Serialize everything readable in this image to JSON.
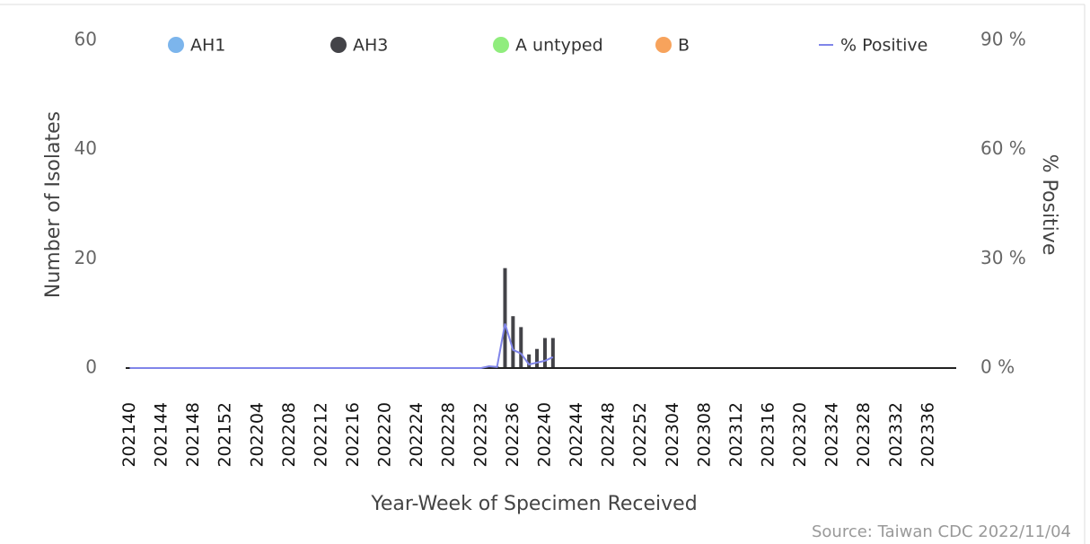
{
  "chart_data": {
    "type": "bar",
    "x_label": "Year-Week of Specimen Received",
    "y_label": "Number of Isolates",
    "y2_label": "% Positive",
    "source": "Source: Taiwan CDC 2022/11/04",
    "stacked": true,
    "categories": [
      "202140",
      null,
      null,
      null,
      "202144",
      null,
      null,
      null,
      "202148",
      null,
      null,
      null,
      "202152",
      null,
      null,
      null,
      "202204",
      null,
      null,
      null,
      "202208",
      null,
      null,
      null,
      "202212",
      null,
      null,
      null,
      "202216",
      null,
      null,
      null,
      "202220",
      null,
      null,
      null,
      "202224",
      null,
      null,
      null,
      "202228",
      null,
      null,
      null,
      "202232",
      null,
      null,
      null,
      "202236",
      null,
      null,
      null,
      "202240",
      null,
      null,
      null,
      "202244",
      null,
      null,
      null,
      "202248",
      null,
      null,
      null,
      "202252",
      null,
      null,
      null,
      "202304",
      null,
      null,
      null,
      "202308",
      null,
      null,
      null,
      "202312",
      null,
      null,
      null,
      "202316",
      null,
      null,
      null,
      "202320",
      null,
      null,
      null,
      "202324",
      null,
      null,
      null,
      "202328",
      null,
      null,
      null,
      "202332",
      null,
      null,
      null,
      "202336",
      null,
      null,
      null
    ],
    "series": [
      {
        "name": "AH1",
        "color": "#7cb5ec",
        "values": [
          0,
          0,
          0,
          0,
          0,
          0,
          0,
          0,
          0,
          0,
          0,
          0,
          0,
          0,
          0,
          0,
          0,
          0,
          0,
          0,
          0,
          0,
          0,
          0,
          0,
          0,
          0,
          0,
          0,
          0,
          0,
          0,
          0,
          0,
          0,
          0,
          0,
          0,
          0,
          0,
          0,
          0,
          0,
          0,
          0,
          0,
          0,
          0,
          0,
          0,
          0,
          0,
          0,
          0,
          0,
          0,
          0,
          0,
          0,
          0,
          0,
          0,
          0,
          0,
          0,
          0,
          0,
          0,
          0,
          0,
          0,
          0,
          0,
          0,
          0,
          0,
          0,
          0,
          0,
          0,
          0,
          0,
          0,
          0,
          0,
          0,
          0,
          0,
          0,
          0,
          0,
          0,
          0,
          0,
          0,
          0,
          0,
          0,
          0,
          0,
          0,
          0,
          0,
          0
        ]
      },
      {
        "name": "AH3",
        "color": "#434348",
        "values": [
          0,
          0,
          0,
          0,
          0,
          0,
          0,
          0,
          0,
          0,
          0,
          0,
          0,
          0,
          0,
          0,
          0,
          0,
          0,
          0,
          0,
          0,
          0,
          0,
          0,
          0,
          0,
          0,
          0,
          0,
          0,
          0,
          0,
          0,
          0,
          0,
          0,
          0,
          0,
          0,
          0,
          0,
          0,
          0,
          0,
          0.3,
          0.3,
          18.3,
          9.5,
          7.5,
          2.5,
          3.5,
          5.5,
          5.5,
          0,
          0,
          0,
          0,
          0,
          0,
          0,
          0,
          0,
          0,
          0,
          0,
          0,
          0,
          0,
          0,
          0,
          0,
          0,
          0,
          0,
          0,
          0,
          0,
          0,
          0,
          0,
          0,
          0,
          0,
          0,
          0,
          0,
          0,
          0,
          0,
          0,
          0,
          0,
          0,
          0,
          0,
          0,
          0,
          0,
          0,
          0,
          0,
          0,
          0
        ]
      },
      {
        "name": "A untyped",
        "color": "#90ed7d",
        "values": [
          0,
          0,
          0,
          0,
          0,
          0,
          0,
          0,
          0,
          0,
          0,
          0,
          0,
          0,
          0,
          0,
          0,
          0,
          0,
          0,
          0,
          0,
          0,
          0,
          0,
          0,
          0,
          0,
          0,
          0,
          0,
          0,
          0,
          0,
          0,
          0,
          0,
          0,
          0,
          0,
          0,
          0,
          0,
          0,
          0,
          0,
          0,
          0,
          0,
          0,
          0,
          0,
          0,
          0,
          0,
          0,
          0,
          0,
          0,
          0,
          0,
          0,
          0,
          0,
          0,
          0,
          0,
          0,
          0,
          0,
          0,
          0,
          0,
          0,
          0,
          0,
          0,
          0,
          0,
          0,
          0,
          0,
          0,
          0,
          0,
          0,
          0,
          0,
          0,
          0,
          0,
          0,
          0,
          0,
          0,
          0,
          0,
          0,
          0,
          0,
          0,
          0,
          0,
          0
        ]
      },
      {
        "name": "B",
        "color": "#f7a35c",
        "values": [
          0,
          0,
          0,
          0,
          0,
          0,
          0,
          0,
          0,
          0,
          0,
          0,
          0,
          0,
          0,
          0,
          0,
          0,
          0,
          0,
          0,
          0,
          0,
          0,
          0,
          0,
          0,
          0,
          0,
          0,
          0,
          0,
          0,
          0,
          0,
          0,
          0,
          0,
          0,
          0,
          0,
          0,
          0,
          0,
          0,
          0,
          0,
          0,
          0,
          0,
          0,
          0,
          0,
          0,
          0,
          0,
          0,
          0,
          0,
          0,
          0,
          0,
          0,
          0,
          0,
          0,
          0,
          0,
          0,
          0,
          0,
          0,
          0,
          0,
          0,
          0,
          0,
          0,
          0,
          0,
          0,
          0,
          0,
          0,
          0,
          0,
          0,
          0,
          0,
          0,
          0,
          0,
          0,
          0,
          0,
          0,
          0,
          0,
          0,
          0,
          0,
          0,
          0,
          0
        ]
      },
      {
        "name": "% Positive",
        "color": "#8085e9",
        "type": "line",
        "axis": "y2",
        "values": [
          0,
          0,
          0,
          0,
          0,
          0,
          0,
          0,
          0,
          0,
          0,
          0,
          0,
          0,
          0,
          0,
          0,
          0,
          0,
          0,
          0,
          0,
          0,
          0,
          0,
          0,
          0,
          0,
          0,
          0,
          0,
          0,
          0,
          0,
          0,
          0,
          0,
          0,
          0,
          0,
          0,
          0,
          0,
          0,
          0,
          0.5,
          0.3,
          12.2,
          5,
          4,
          1,
          1.5,
          2,
          3,
          null,
          null,
          null,
          null,
          null,
          null,
          null,
          null,
          null,
          null,
          null,
          null,
          null,
          null,
          null,
          null,
          null,
          null,
          null,
          null,
          null,
          null,
          null,
          null,
          null,
          null,
          null,
          null,
          null,
          null,
          null,
          null,
          null,
          null,
          null,
          null,
          null,
          null,
          null,
          null,
          null,
          null,
          null,
          null,
          null,
          null,
          null,
          null,
          null,
          null
        ]
      }
    ],
    "ylim": [
      0,
      60
    ],
    "yticks": [
      0,
      20,
      40,
      60
    ],
    "y2lim": [
      0,
      90
    ],
    "y2ticks": [
      {
        "value": 0,
        "label": "0 %"
      },
      {
        "value": 30,
        "label": "30 %"
      },
      {
        "value": 60,
        "label": "60 %"
      },
      {
        "value": 90,
        "label": "90 %"
      }
    ],
    "legend": "top"
  }
}
